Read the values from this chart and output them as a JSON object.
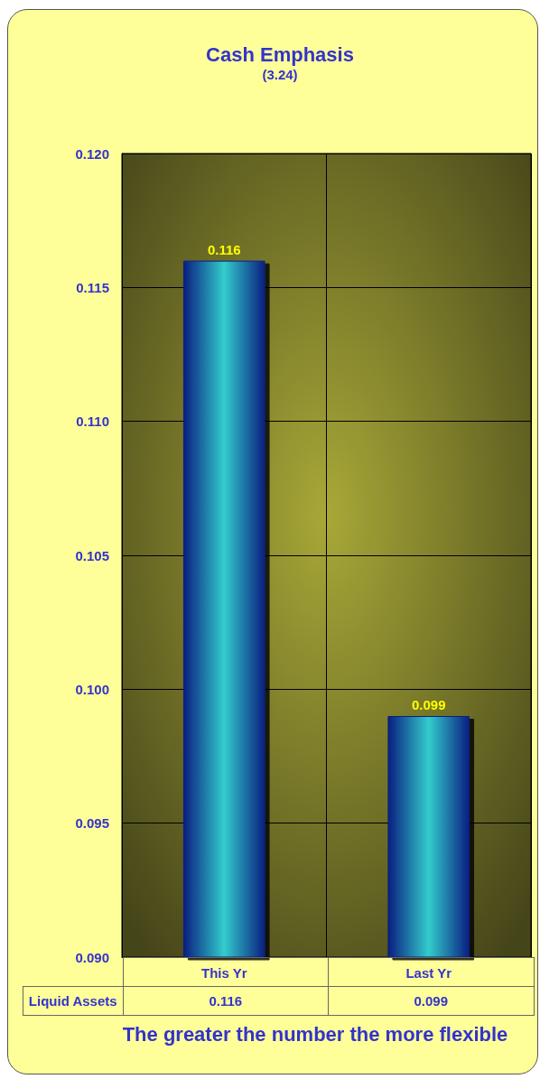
{
  "chart_data": {
    "type": "bar",
    "title": "Cash Emphasis",
    "subtitle": "(3.24)",
    "categories": [
      "This Yr",
      "Last Yr"
    ],
    "series": [
      {
        "name": "Liquid Assets",
        "color": "#0a1f80",
        "values": [
          0.116,
          0.099
        ],
        "value_labels": [
          "0.116",
          "0.099"
        ]
      }
    ],
    "ylim": [
      0.09,
      0.12
    ],
    "yticks": [
      {
        "value": 0.09,
        "label": "0.090"
      },
      {
        "value": 0.095,
        "label": "0.095"
      },
      {
        "value": 0.1,
        "label": "0.100"
      },
      {
        "value": 0.105,
        "label": "0.105"
      },
      {
        "value": 0.11,
        "label": "0.110"
      },
      {
        "value": 0.115,
        "label": "0.115"
      },
      {
        "value": 0.12,
        "label": "0.120"
      }
    ],
    "grid": true,
    "annotations": [
      "The greater the number the more flexible"
    ]
  }
}
